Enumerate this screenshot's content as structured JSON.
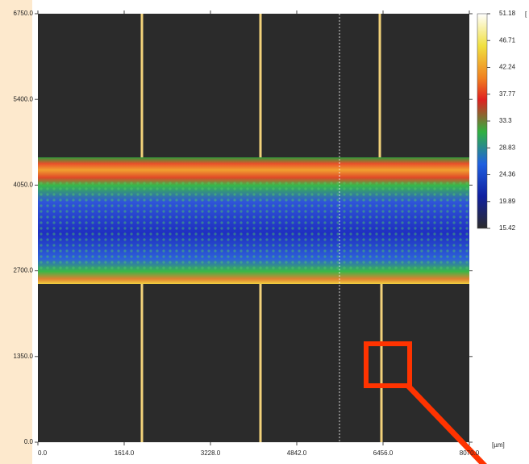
{
  "chart_data": {
    "type": "heatmap",
    "x_unit": "[µm]",
    "colorbar_unit": "[",
    "xlim": [
      0,
      8070
    ],
    "xticks": [
      {
        "value": 0,
        "label": "0.0"
      },
      {
        "value": 1614,
        "label": "1614.0"
      },
      {
        "value": 3228,
        "label": "3228.0"
      },
      {
        "value": 4842,
        "label": "4842.0"
      },
      {
        "value": 6456,
        "label": "6456.0"
      },
      {
        "value": 8070,
        "label": "8070.0"
      }
    ],
    "ylim": [
      0,
      6750
    ],
    "yticks": [
      {
        "value": 0,
        "label": "0.0"
      },
      {
        "value": 1350,
        "label": "1350.0"
      },
      {
        "value": 2700,
        "label": "2700.0"
      },
      {
        "value": 4050,
        "label": "4050.0"
      },
      {
        "value": 5400,
        "label": "5400.0"
      },
      {
        "value": 6750,
        "label": "6750.0"
      }
    ],
    "colorbar": {
      "lim": [
        15.42,
        51.18
      ],
      "ticks": [
        51.18,
        46.71,
        42.24,
        37.77,
        33.3,
        28.83,
        24.36,
        19.89,
        15.42
      ]
    }
  }
}
